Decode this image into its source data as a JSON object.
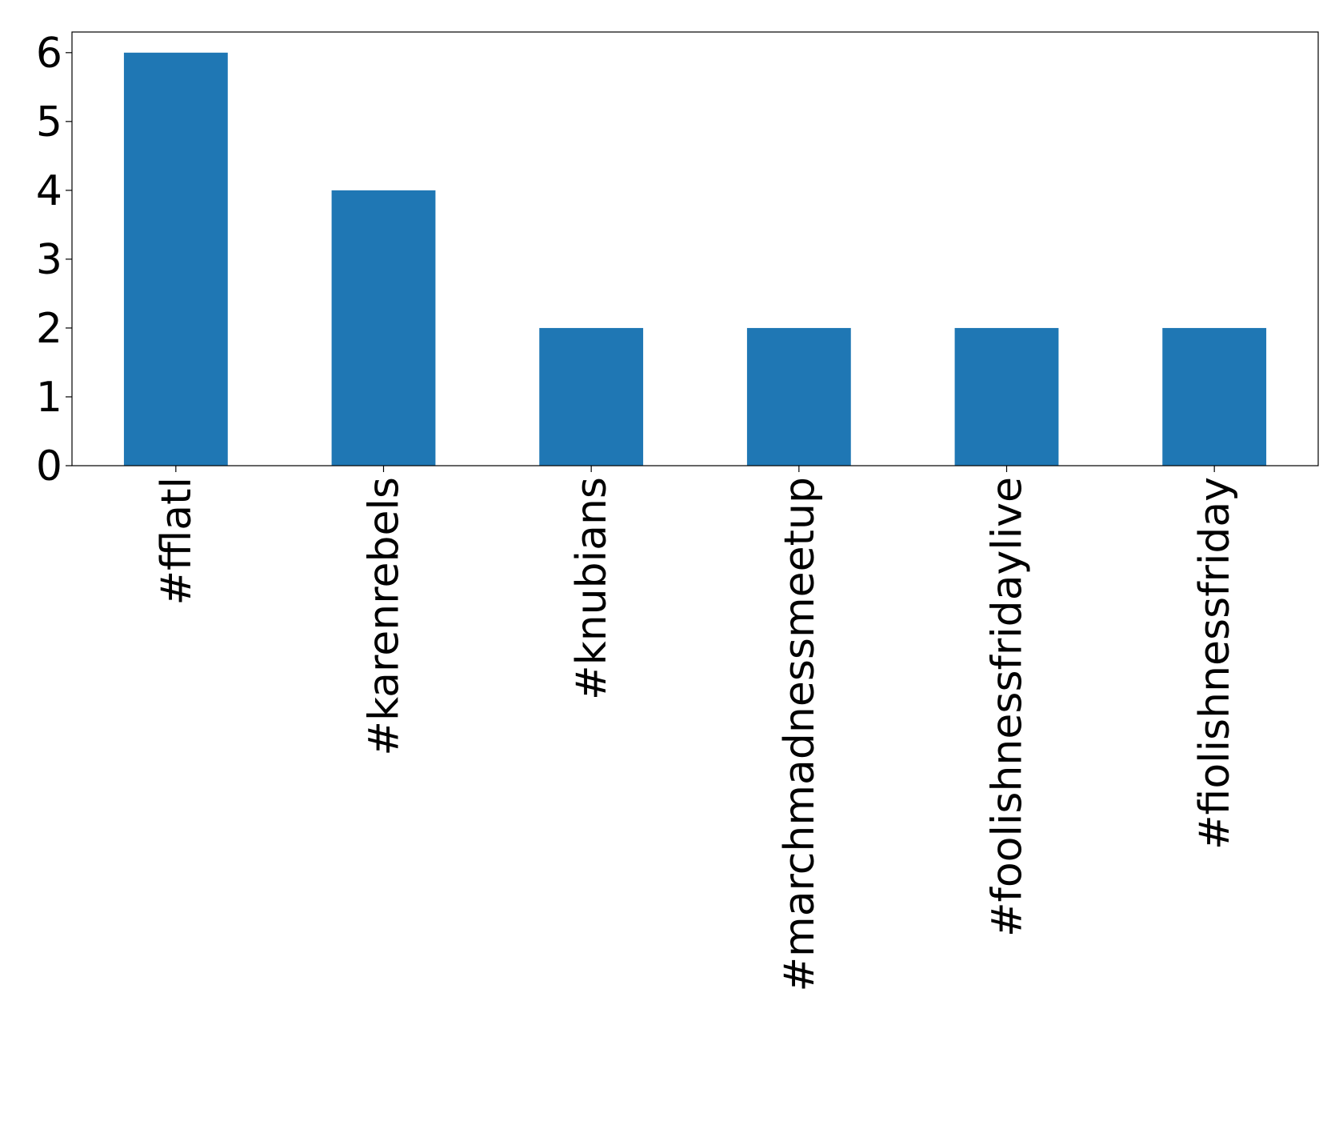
{
  "chart_data": {
    "type": "bar",
    "title": "",
    "xlabel": "",
    "ylabel": "",
    "categories": [
      "#fflatl",
      "#karenrebels",
      "#knubians",
      "#marchmadnessmeetup",
      "#foolishnessfridaylive",
      "#fiolishnessfriday"
    ],
    "values": [
      6,
      4,
      2,
      2,
      2,
      2
    ],
    "ylim": [
      0,
      6.3
    ],
    "yticks": [
      0,
      1,
      2,
      3,
      4,
      5,
      6
    ],
    "xtick_rotation": "vertical",
    "grid": false,
    "legend": "none",
    "bar_color": "#1f77b4"
  }
}
